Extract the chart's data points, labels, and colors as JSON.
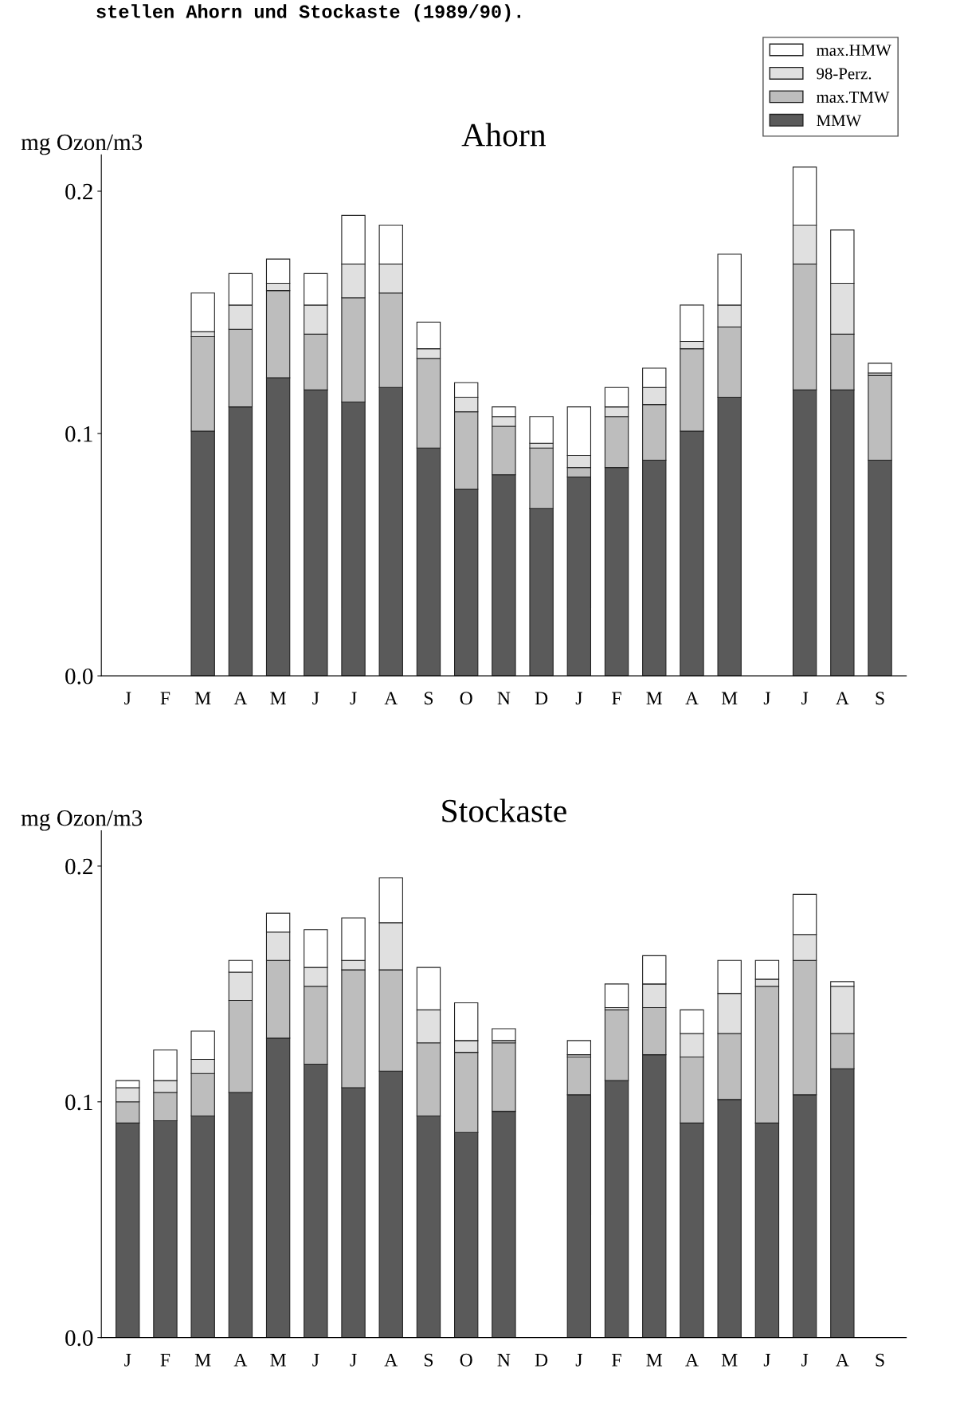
{
  "chart_data": [
    {
      "type": "bar",
      "stacked": true,
      "title": "Ahorn",
      "ylabel": "mg Ozon/m3",
      "annotations": [
        "stellen Ahorn und Stockaste (1989/90)."
      ],
      "categories": [
        "J",
        "F",
        "M",
        "A",
        "M",
        "J",
        "J",
        "A",
        "S",
        "O",
        "N",
        "D",
        "J",
        "F",
        "M",
        "A",
        "M",
        "J",
        "J",
        "A",
        "S"
      ],
      "ylim": [
        0,
        0.215
      ],
      "yticks": [
        {
          "value": 0,
          "label": "0.0"
        },
        {
          "value": 0.1,
          "label": "0.1"
        },
        {
          "value": 0.2,
          "label": "0.2"
        }
      ],
      "grid": false,
      "legend": "top right",
      "series": [
        {
          "name": "MMW",
          "color": "#5a5a5a",
          "values": [
            null,
            null,
            0.101,
            0.111,
            0.123,
            0.118,
            0.113,
            0.119,
            0.094,
            0.077,
            0.083,
            0.069,
            0.082,
            0.086,
            0.089,
            0.101,
            0.115,
            null,
            0.118,
            0.118,
            0.089
          ]
        },
        {
          "name": "max.TMW",
          "color": "#bdbdbd",
          "values": [
            null,
            null,
            0.039,
            0.032,
            0.036,
            0.023,
            0.043,
            0.039,
            0.037,
            0.032,
            0.02,
            0.025,
            0.004,
            0.021,
            0.023,
            0.034,
            0.029,
            null,
            0.052,
            0.023,
            0.035
          ]
        },
        {
          "name": "98-Perz.",
          "color": "#e0e0e0",
          "values": [
            null,
            null,
            0.002,
            0.01,
            0.003,
            0.012,
            0.014,
            0.012,
            0.004,
            0.006,
            0.004,
            0.002,
            0.005,
            0.004,
            0.007,
            0.003,
            0.009,
            null,
            0.016,
            0.021,
            0.001
          ]
        },
        {
          "name": "max.HMW",
          "color": "#ffffff",
          "values": [
            null,
            null,
            0.016,
            0.013,
            0.01,
            0.013,
            0.02,
            0.016,
            0.011,
            0.006,
            0.004,
            0.011,
            0.02,
            0.008,
            0.008,
            0.015,
            0.021,
            null,
            0.024,
            0.022,
            0.004
          ]
        }
      ]
    },
    {
      "type": "bar",
      "stacked": true,
      "title": "Stockaste",
      "ylabel": "mg Ozon/m3",
      "categories": [
        "J",
        "F",
        "M",
        "A",
        "M",
        "J",
        "J",
        "A",
        "S",
        "O",
        "N",
        "D",
        "J",
        "F",
        "M",
        "A",
        "M",
        "J",
        "J",
        "A",
        "S"
      ],
      "ylim": [
        0,
        0.215
      ],
      "yticks": [
        {
          "value": 0,
          "label": "0.0"
        },
        {
          "value": 0.1,
          "label": "0.1"
        },
        {
          "value": 0.2,
          "label": "0.2"
        }
      ],
      "grid": false,
      "series": [
        {
          "color": "#5a5a5a",
          "values": [
            0.091,
            0.092,
            0.094,
            0.104,
            0.127,
            0.116,
            0.106,
            0.113,
            0.094,
            0.087,
            0.096,
            null,
            0.103,
            0.109,
            0.12,
            0.091,
            0.101,
            0.091,
            0.103,
            0.114,
            null
          ]
        },
        {
          "color": "#bdbdbd",
          "values": [
            0.009,
            0.012,
            0.018,
            0.039,
            0.033,
            0.033,
            0.05,
            0.043,
            0.031,
            0.034,
            0.029,
            null,
            0.016,
            0.03,
            0.02,
            0.028,
            0.028,
            0.058,
            0.057,
            0.015,
            null
          ]
        },
        {
          "color": "#e0e0e0",
          "values": [
            0.006,
            0.005,
            0.006,
            0.012,
            0.012,
            0.008,
            0.004,
            0.02,
            0.014,
            0.005,
            0.001,
            null,
            0.001,
            0.001,
            0.01,
            0.01,
            0.017,
            0.003,
            0.011,
            0.02,
            null
          ]
        },
        {
          "color": "#ffffff",
          "values": [
            0.003,
            0.013,
            0.012,
            0.005,
            0.008,
            0.016,
            0.018,
            0.019,
            0.018,
            0.016,
            0.005,
            null,
            0.006,
            0.01,
            0.012,
            0.01,
            0.014,
            0.008,
            0.017,
            0.002,
            null
          ]
        }
      ]
    }
  ]
}
